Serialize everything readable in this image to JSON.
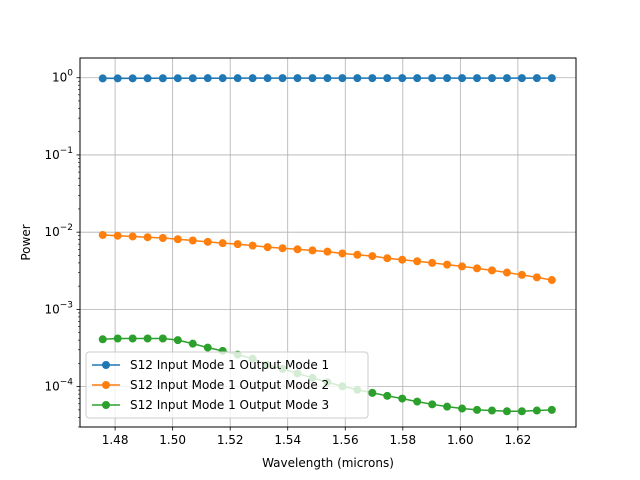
{
  "chart_data": {
    "type": "line",
    "title": "",
    "xlabel": "Wavelength (microns)",
    "ylabel": "Power",
    "yscale": "log",
    "xlim": [
      1.4678,
      1.6402
    ],
    "ylim": [
      3e-05,
      1.8
    ],
    "grid": true,
    "legend_position": "lower-left",
    "x_ticks": [
      {
        "value": 1.48,
        "label": "1.48"
      },
      {
        "value": 1.5,
        "label": "1.50"
      },
      {
        "value": 1.52,
        "label": "1.52"
      },
      {
        "value": 1.54,
        "label": "1.54"
      },
      {
        "value": 1.56,
        "label": "1.56"
      },
      {
        "value": 1.58,
        "label": "1.58"
      },
      {
        "value": 1.6,
        "label": "1.60"
      },
      {
        "value": 1.62,
        "label": "1.62"
      }
    ],
    "y_ticks": [
      {
        "exp": 0,
        "value": 1,
        "base": "10",
        "sup": "0"
      },
      {
        "exp": -1,
        "value": 0.1,
        "base": "10",
        "sup": "−1"
      },
      {
        "exp": -2,
        "value": 0.01,
        "base": "10",
        "sup": "−2"
      },
      {
        "exp": -3,
        "value": 0.001,
        "base": "10",
        "sup": "−3"
      },
      {
        "exp": -4,
        "value": 0.0001,
        "base": "10",
        "sup": "−4"
      }
    ],
    "x": [
      1.4757,
      1.4809,
      1.4861,
      1.4913,
      1.4966,
      1.5018,
      1.507,
      1.5122,
      1.5174,
      1.5226,
      1.5278,
      1.533,
      1.5382,
      1.5434,
      1.5486,
      1.5538,
      1.559,
      1.5642,
      1.5694,
      1.5746,
      1.5798,
      1.585,
      1.5902,
      1.5954,
      1.6006,
      1.6058,
      1.611,
      1.6162,
      1.6214,
      1.6266,
      1.6318
    ],
    "series": [
      {
        "name": "S12 Input Mode 1 Output Mode 1",
        "color": "#1f77b4",
        "values": [
          0.98,
          0.981,
          0.982,
          0.983,
          0.984,
          0.985,
          0.985,
          0.986,
          0.986,
          0.987,
          0.987,
          0.987,
          0.988,
          0.988,
          0.988,
          0.988,
          0.988,
          0.988,
          0.988,
          0.988,
          0.988,
          0.988,
          0.988,
          0.988,
          0.988,
          0.988,
          0.988,
          0.988,
          0.988,
          0.988,
          0.988
        ]
      },
      {
        "name": "S12 Input Mode 1 Output Mode 2",
        "color": "#ff7f0e",
        "values": [
          0.0092,
          0.009,
          0.0088,
          0.0086,
          0.0084,
          0.0081,
          0.0078,
          0.0075,
          0.0072,
          0.007,
          0.0067,
          0.0064,
          0.0062,
          0.006,
          0.0058,
          0.0056,
          0.0053,
          0.0051,
          0.0049,
          0.0046,
          0.0044,
          0.0042,
          0.004,
          0.0038,
          0.0036,
          0.0034,
          0.0032,
          0.003,
          0.0028,
          0.0026,
          0.0024
        ]
      },
      {
        "name": "S12 Input Mode 1 Output Mode 3",
        "color": "#2ca02c",
        "values": [
          0.00041,
          0.00042,
          0.00042,
          0.00042,
          0.00042,
          0.0004,
          0.00036,
          0.00032,
          0.00029,
          0.00026,
          0.00023,
          0.00019,
          0.00017,
          0.000148,
          0.00013,
          0.000114,
          0.000101,
          9.1e-05,
          8.3e-05,
          7.6e-05,
          7e-05,
          6.4e-05,
          5.9e-05,
          5.5e-05,
          5.2e-05,
          5e-05,
          4.9e-05,
          4.8e-05,
          4.8e-05,
          4.9e-05,
          5e-05
        ]
      }
    ]
  }
}
